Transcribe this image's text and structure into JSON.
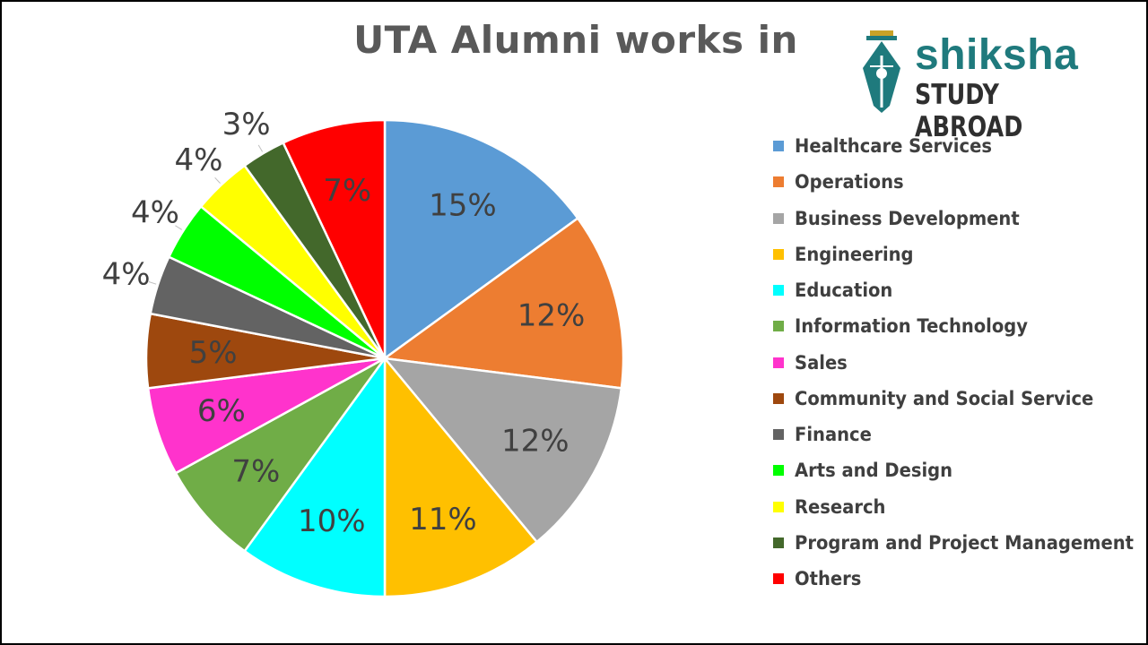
{
  "chart_data": {
    "type": "pie",
    "title": "UTA Alumni works in",
    "slices": [
      {
        "label": "Healthcare Services",
        "value": 15,
        "display": "15%",
        "color": "#5b9bd5"
      },
      {
        "label": "Operations",
        "value": 12,
        "display": "12%",
        "color": "#ed7d31"
      },
      {
        "label": "Business Development",
        "value": 12,
        "display": "12%",
        "color": "#a5a5a5"
      },
      {
        "label": "Engineering",
        "value": 11,
        "display": "11%",
        "color": "#ffc000"
      },
      {
        "label": "Education",
        "value": 10,
        "display": "10%",
        "color": "#00ffff"
      },
      {
        "label": "Information Technology",
        "value": 7,
        "display": "7%",
        "color": "#70ad47"
      },
      {
        "label": "Sales",
        "value": 6,
        "display": "6%",
        "color": "#ff33cc"
      },
      {
        "label": "Community and Social Service",
        "value": 5,
        "display": "5%",
        "color": "#9e480e"
      },
      {
        "label": "Finance",
        "value": 4,
        "display": "4%",
        "color": "#636363"
      },
      {
        "label": "Arts and Design",
        "value": 4,
        "display": "4%",
        "color": "#00ff00"
      },
      {
        "label": "Research",
        "value": 4,
        "display": "4%",
        "color": "#ffff00"
      },
      {
        "label": "Program and Project Management",
        "value": 3,
        "display": "3%",
        "color": "#43682b"
      },
      {
        "label": "Others",
        "value": 7,
        "display": "7%",
        "color": "#ff0000"
      }
    ],
    "legend_position": "right",
    "start_angle": "12 o'clock",
    "direction": "clockwise"
  },
  "logo": {
    "brand": "shiksha",
    "tagline": "STUDY ABROAD",
    "colors": {
      "brand": "#1f7a7d",
      "tagline": "#2f2f2f"
    }
  }
}
